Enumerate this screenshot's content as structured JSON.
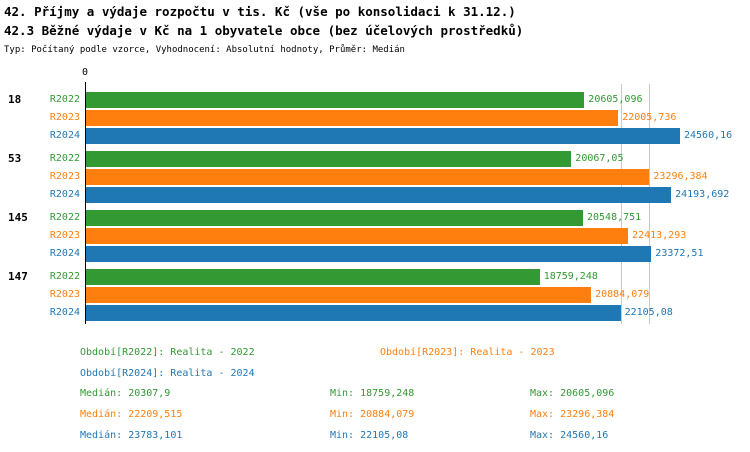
{
  "chart_data": {
    "type": "bar",
    "orientation": "horizontal",
    "title_line1": "42. Příjmy a výdaje rozpočtu v tis. Kč (vše po konsolidaci k 31.12.)",
    "title_line2": "42.3 Běžné výdaje v Kč na 1 obyvatele obce (bez účelových prostředků)",
    "subtitle": "Typ: Počítaný podle vzorce, Vyhodnocení: Absolutní hodnoty, Průměr: Medián",
    "zero_label": "0",
    "categories": [
      "18",
      "53",
      "145",
      "147"
    ],
    "series": [
      {
        "name": "R2022",
        "color": "#339933",
        "values": [
          20605.096,
          20067.05,
          20548.751,
          18759.248
        ],
        "value_labels": [
          "20605,096",
          "20067,05",
          "20548,751",
          "18759,248"
        ]
      },
      {
        "name": "R2023",
        "color": "#ff7f0e",
        "values": [
          22005.736,
          23296.384,
          22413.293,
          20884.079
        ],
        "value_labels": [
          "22005,736",
          "23296,384",
          "22413,293",
          "20884,079"
        ]
      },
      {
        "name": "R2024",
        "color": "#1f77b4",
        "values": [
          24560.16,
          24193.692,
          23372.51,
          22105.08
        ],
        "value_labels": [
          "24560,16",
          "24193,692",
          "23372,51",
          "22105,08"
        ]
      }
    ],
    "xlim": [
      0,
      24560.16
    ],
    "gridlines_x": [
      22105.08,
      23296.384
    ],
    "grid": "vertical-partial",
    "legend_position": "bottom",
    "legend": {
      "items": [
        {
          "label": "Období[R2022]: Realita - 2022",
          "color": "#339933"
        },
        {
          "label": "Období[R2023]: Realita - 2023",
          "color": "#ff7f0e"
        },
        {
          "label": "Období[R2024]: Realita - 2024",
          "color": "#1f77b4"
        }
      ]
    },
    "stats": {
      "median_label": "Medián:",
      "min_label": "Min:",
      "max_label": "Max:",
      "rows": [
        {
          "median": "20307,9",
          "min": "18759,248",
          "max": "20605,096",
          "color": "#339933"
        },
        {
          "median": "22209,515",
          "min": "20884,079",
          "max": "23296,384",
          "color": "#ff7f0e"
        },
        {
          "median": "23783,101",
          "min": "22105,08",
          "max": "24560,16",
          "color": "#1f77b4"
        }
      ]
    }
  }
}
